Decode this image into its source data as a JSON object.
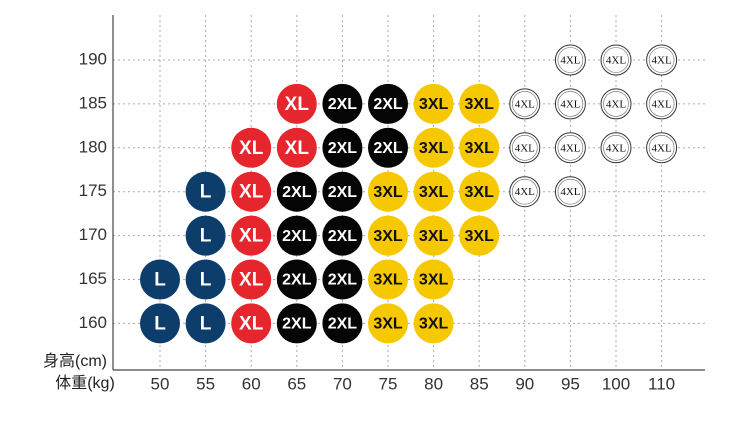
{
  "chart_data": {
    "type": "size-grid",
    "x_label": "体重(kg)",
    "y_label": "身高(cm)",
    "xticks": [
      50,
      55,
      60,
      65,
      70,
      75,
      80,
      85,
      90,
      95,
      100,
      110
    ],
    "yticks": [
      190,
      185,
      180,
      175,
      170,
      165,
      160
    ],
    "grid": true,
    "size_colors": {
      "L": "#0c3d6b",
      "XL": "#e5262c",
      "2XL": "#050505",
      "3XL": "#f6c800",
      "4XL": "#ffffff"
    },
    "rows": [
      [
        null,
        null,
        null,
        null,
        null,
        null,
        null,
        null,
        null,
        "4XL",
        "4XL",
        "4XL"
      ],
      [
        null,
        null,
        null,
        "XL",
        "2XL",
        "2XL",
        "3XL",
        "3XL",
        "4XL",
        "4XL",
        "4XL",
        "4XL"
      ],
      [
        null,
        null,
        "XL",
        "XL",
        "2XL",
        "2XL",
        "3XL",
        "3XL",
        "4XL",
        "4XL",
        "4XL",
        "4XL"
      ],
      [
        null,
        "L",
        "XL",
        "2XL",
        "2XL",
        "3XL",
        "3XL",
        "3XL",
        "4XL",
        "4XL",
        null,
        null
      ],
      [
        null,
        "L",
        "XL",
        "2XL",
        "2XL",
        "3XL",
        "3XL",
        "3XL",
        null,
        null,
        null,
        null
      ],
      [
        "L",
        "L",
        "XL",
        "2XL",
        "2XL",
        "3XL",
        "3XL",
        null,
        null,
        null,
        null,
        null
      ],
      [
        "L",
        "L",
        "XL",
        "2XL",
        "2XL",
        "3XL",
        "3XL",
        null,
        null,
        null,
        null,
        null
      ]
    ]
  }
}
